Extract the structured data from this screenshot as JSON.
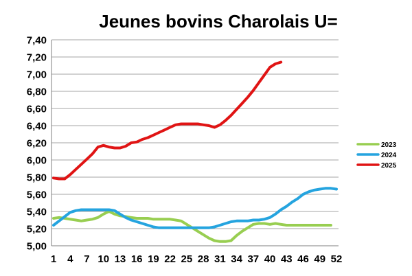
{
  "title": "Jeunes bovins Charolais U=",
  "colors": {
    "series_2023": "#98ce51",
    "series_2024": "#25a4df",
    "series_2025": "#e01414",
    "gridline": "#a6a6a6",
    "axis_line": "#7f7f7f",
    "text": "#000000",
    "background": "#ffffff"
  },
  "legend": {
    "position": "right",
    "items": [
      {
        "label": "2023",
        "color": "#98ce51"
      },
      {
        "label": "2024",
        "color": "#25a4df"
      },
      {
        "label": "2025",
        "color": "#e01414"
      }
    ]
  },
  "chart_data": {
    "type": "line",
    "title": "Jeunes bovins Charolais U=",
    "xlabel": "",
    "ylabel": "",
    "xlim": [
      1,
      52
    ],
    "ylim": [
      5.0,
      7.4
    ],
    "y_step": 0.2,
    "grid": true,
    "decimal_separator": ",",
    "x_tick_labels": [
      "1",
      "4",
      "7",
      "10",
      "13",
      "16",
      "19",
      "22",
      "25",
      "28",
      "31",
      "34",
      "37",
      "40",
      "43",
      "46",
      "49",
      "52"
    ],
    "x_tick_values": [
      1,
      4,
      7,
      10,
      13,
      16,
      19,
      22,
      25,
      28,
      31,
      34,
      37,
      40,
      43,
      46,
      49,
      52
    ],
    "y_tick_labels": [
      "7,40",
      "7,20",
      "7,00",
      "6,80",
      "6,60",
      "6,40",
      "6,20",
      "6,00",
      "5,80",
      "5,60",
      "5,40",
      "5,20",
      "5,00"
    ],
    "y_tick_values": [
      7.4,
      7.2,
      7.0,
      6.8,
      6.6,
      6.4,
      6.2,
      6.0,
      5.8,
      5.6,
      5.4,
      5.2,
      5.0
    ],
    "x_unit": "week",
    "series": [
      {
        "name": "2023",
        "color": "#98ce51",
        "start_week": 1,
        "values": [
          5.32,
          5.33,
          5.32,
          5.31,
          5.3,
          5.29,
          5.3,
          5.31,
          5.33,
          5.37,
          5.4,
          5.37,
          5.35,
          5.34,
          5.33,
          5.32,
          5.32,
          5.32,
          5.31,
          5.31,
          5.31,
          5.31,
          5.3,
          5.29,
          5.25,
          5.21,
          5.17,
          5.13,
          5.09,
          5.06,
          5.05,
          5.05,
          5.06,
          5.12,
          5.17,
          5.21,
          5.25,
          5.26,
          5.26,
          5.25,
          5.26,
          5.25,
          5.24,
          5.24,
          5.24,
          5.24,
          5.24,
          5.24,
          5.24,
          5.24,
          5.24
        ]
      },
      {
        "name": "2024",
        "color": "#25a4df",
        "start_week": 1,
        "values": [
          5.24,
          5.29,
          5.34,
          5.39,
          5.41,
          5.42,
          5.42,
          5.42,
          5.42,
          5.42,
          5.42,
          5.41,
          5.37,
          5.33,
          5.3,
          5.28,
          5.26,
          5.24,
          5.22,
          5.21,
          5.21,
          5.21,
          5.21,
          5.21,
          5.21,
          5.21,
          5.21,
          5.21,
          5.21,
          5.22,
          5.24,
          5.26,
          5.28,
          5.29,
          5.29,
          5.29,
          5.3,
          5.3,
          5.31,
          5.33,
          5.37,
          5.42,
          5.46,
          5.51,
          5.55,
          5.6,
          5.63,
          5.65,
          5.66,
          5.67,
          5.67,
          5.66
        ]
      },
      {
        "name": "2025",
        "color": "#e01414",
        "start_week": 1,
        "values": [
          5.79,
          5.78,
          5.78,
          5.83,
          5.89,
          5.95,
          6.01,
          6.07,
          6.15,
          6.17,
          6.15,
          6.14,
          6.14,
          6.16,
          6.2,
          6.21,
          6.24,
          6.26,
          6.29,
          6.32,
          6.35,
          6.38,
          6.41,
          6.42,
          6.42,
          6.42,
          6.42,
          6.41,
          6.4,
          6.38,
          6.41,
          6.46,
          6.52,
          6.59,
          6.66,
          6.73,
          6.81,
          6.9,
          6.99,
          7.08,
          7.12,
          7.14
        ]
      }
    ]
  }
}
